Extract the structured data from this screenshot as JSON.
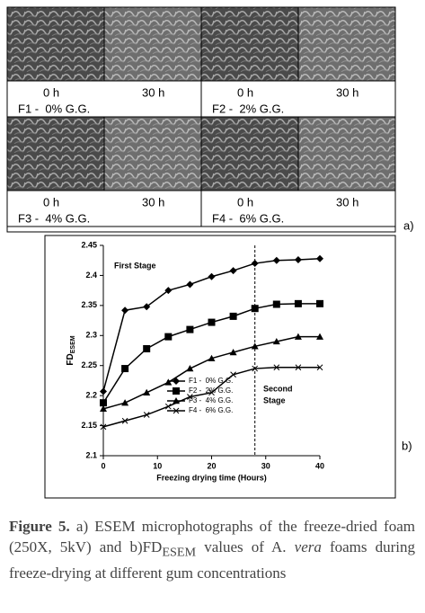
{
  "panel_a": {
    "label": "a)",
    "panels": [
      {
        "left": "0 h",
        "right": "30 h",
        "name": "F1 -  0% G.G."
      },
      {
        "left": "0 h",
        "right": "30 h",
        "name": "F2 -  2% G.G."
      },
      {
        "left": "0 h",
        "right": "30 h",
        "name": "F3 -  4% G.G."
      },
      {
        "left": "0 h",
        "right": "30 h",
        "name": "F4 -  6% G.G."
      }
    ]
  },
  "chart_data": {
    "type": "line",
    "panel_label": "b)",
    "xlabel": "Freezing drying time (Hours)",
    "ylabel": "FD",
    "ylabel_sub": "ESEM",
    "annotations": [
      "First Stage",
      [
        "Second",
        "Stage"
      ]
    ],
    "stage_boundary": 28,
    "x": [
      0,
      4,
      8,
      12,
      16,
      20,
      24,
      28,
      32,
      36,
      40
    ],
    "series": [
      {
        "name": "F1 -  0% G.G.",
        "color": "#000000",
        "marker": "diamond",
        "values": [
          2.207,
          2.342,
          2.348,
          2.375,
          2.385,
          2.398,
          2.408,
          2.42,
          2.425,
          2.426,
          2.428
        ]
      },
      {
        "name": "F2 -  2% G.G.",
        "color": "#000000",
        "marker": "square",
        "values": [
          2.188,
          2.245,
          2.278,
          2.298,
          2.31,
          2.322,
          2.332,
          2.345,
          2.352,
          2.353,
          2.353
        ]
      },
      {
        "name": "F3 -  4% G.G.",
        "color": "#000000",
        "marker": "triangle",
        "values": [
          2.178,
          2.188,
          2.205,
          2.222,
          2.245,
          2.262,
          2.272,
          2.282,
          2.29,
          2.298,
          2.298
        ]
      },
      {
        "name": "F4 -  6% G.G.",
        "color": "#000000",
        "marker": "x",
        "values": [
          2.148,
          2.158,
          2.168,
          2.182,
          2.198,
          2.205,
          2.235,
          2.245,
          2.247,
          2.247,
          2.247
        ]
      }
    ],
    "xlim": [
      0,
      40
    ],
    "xticks": [
      0,
      10,
      20,
      30,
      40
    ],
    "ylim": [
      2.1,
      2.45
    ],
    "yticks": [
      2.1,
      2.15,
      2.2,
      2.25,
      2.3,
      2.35,
      2.4,
      2.45
    ]
  },
  "caption": {
    "label": "Figure 5.",
    "text1": " a) ESEM microphotographs of the freeze-dried foam (250X, 5kV) and b)FD",
    "sub": "ESEM",
    "text2": " values of A. ",
    "italic": "vera",
    "text3": " foams during freeze-drying at different gum concentrations"
  }
}
